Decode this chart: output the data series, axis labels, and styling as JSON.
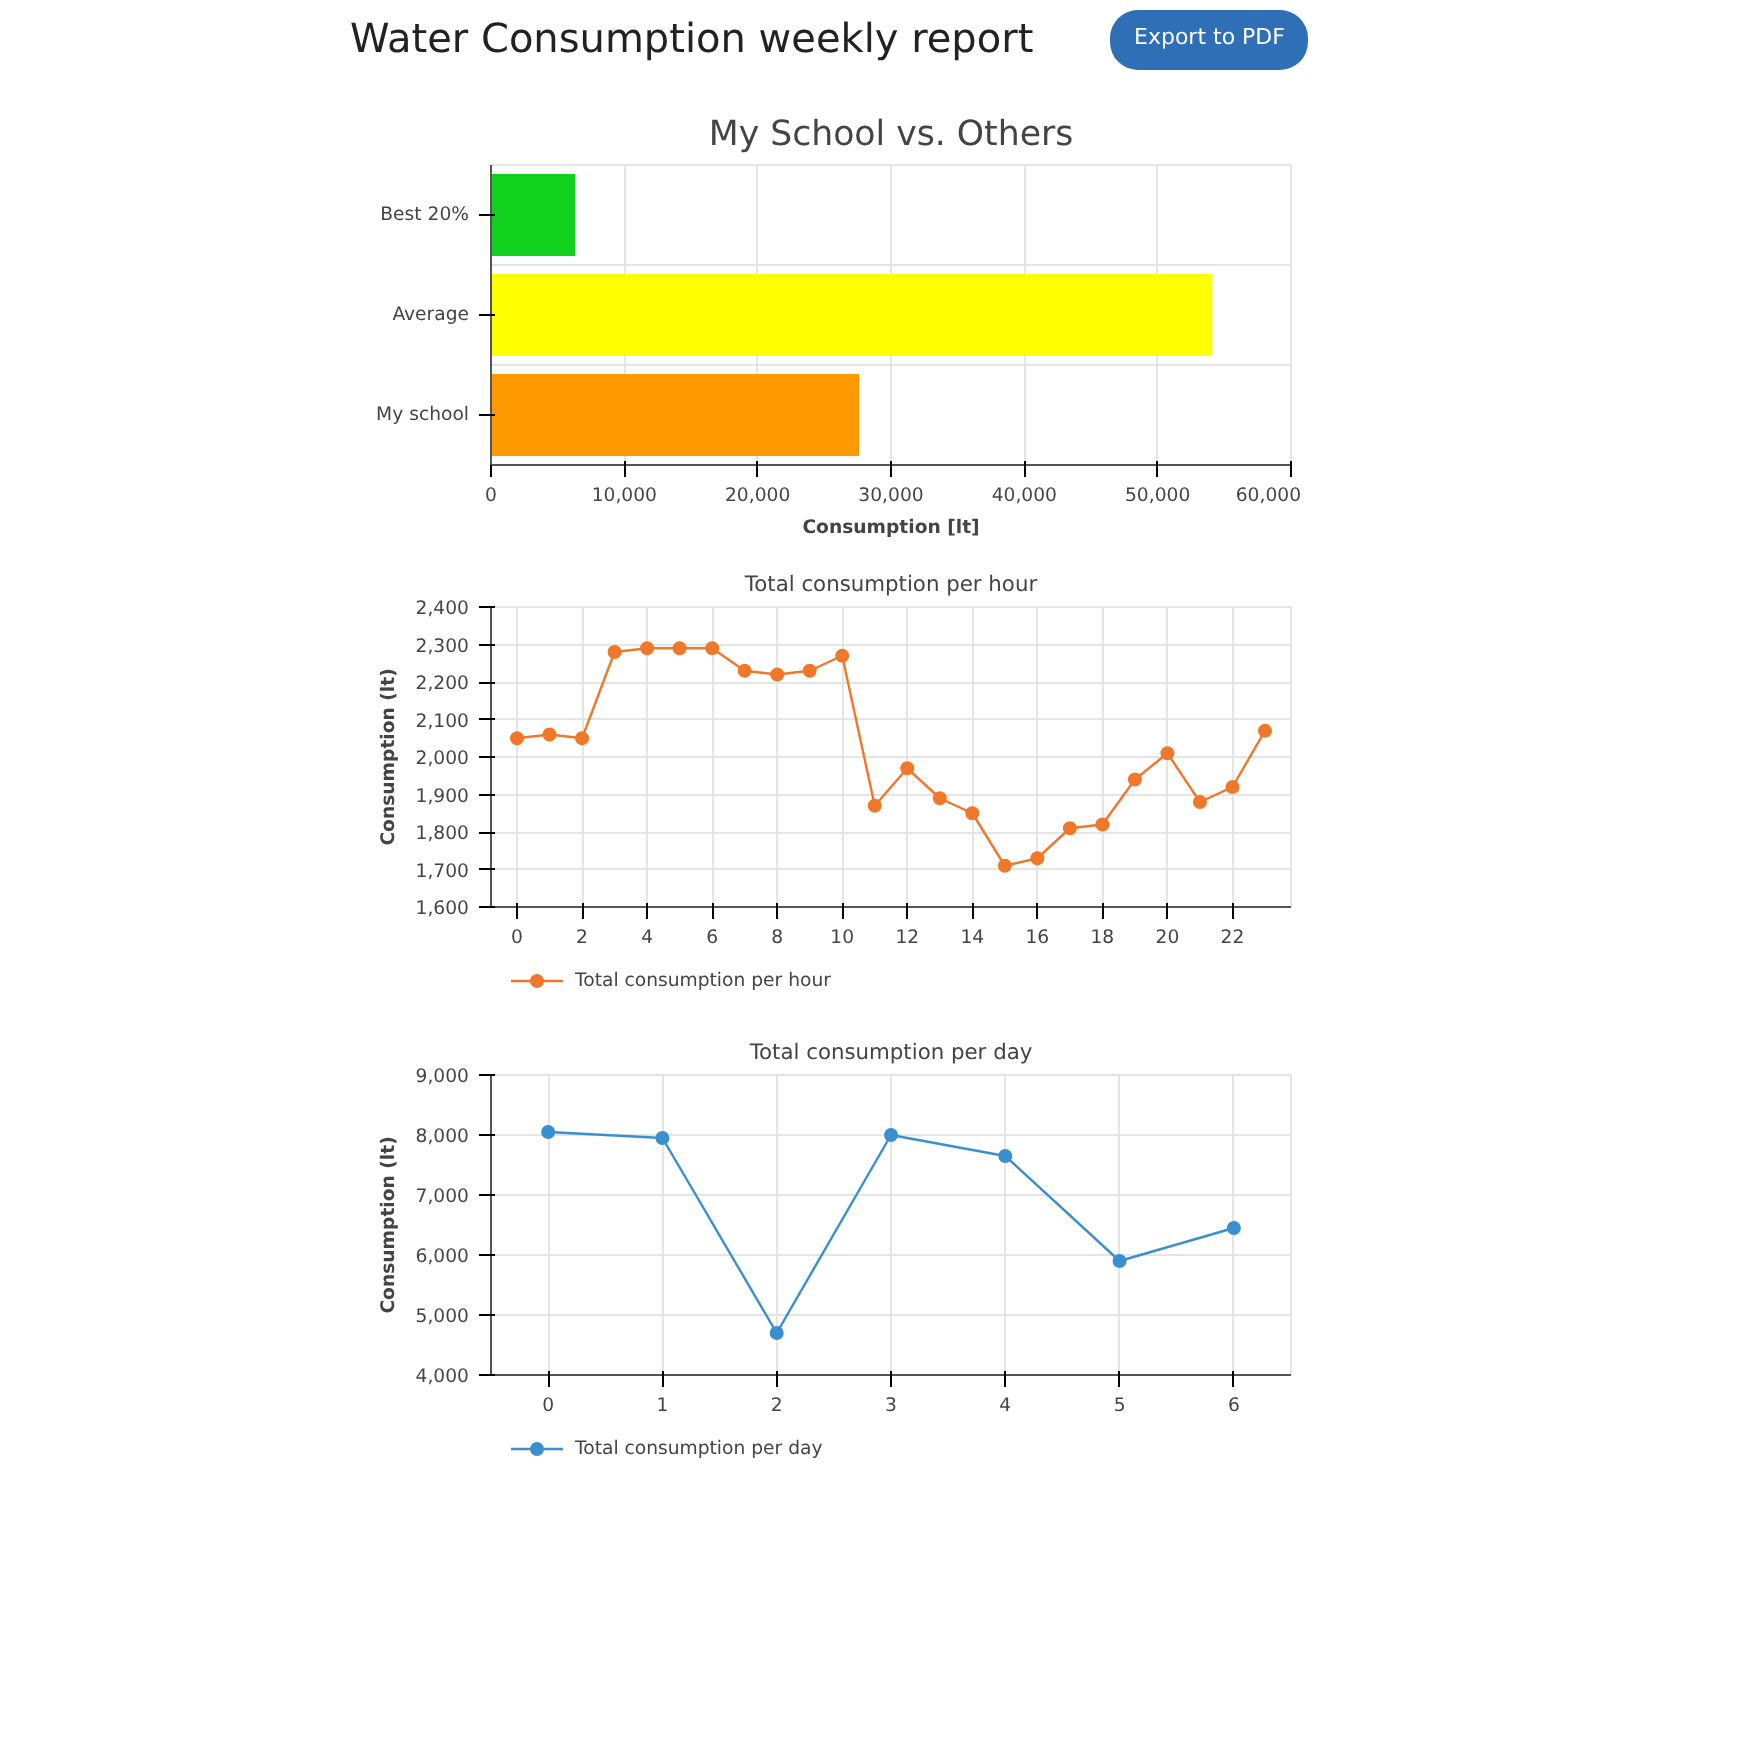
{
  "chart_data": [
    {
      "type": "bar",
      "orientation": "horizontal",
      "title": "My School vs. Others",
      "annotations": [
        "Water Consumption weekly report",
        "Export to PDF"
      ],
      "xlabel": "Consumption [lt]",
      "categories": [
        "Best 20%",
        "Average",
        "My school"
      ],
      "values": [
        6300,
        54100,
        27600
      ],
      "colors": [
        "#11d11f",
        "#ffff00",
        "#ff9900"
      ],
      "xlim": [
        0,
        60000
      ],
      "xticks": [
        0,
        {
          "value": 10000,
          "label": "10,000"
        },
        {
          "value": 20000,
          "label": "20,000"
        },
        {
          "value": 30000,
          "label": "30,000"
        },
        {
          "value": 40000,
          "label": "40,000"
        },
        {
          "value": 50000,
          "label": "50,000"
        },
        {
          "value": 60000,
          "label": "60,000"
        }
      ],
      "grid": true
    },
    {
      "type": "line",
      "title": "Total consumption per hour",
      "ylabel": "Consumption (lt)",
      "x": [
        0,
        1,
        2,
        3,
        4,
        5,
        6,
        7,
        8,
        9,
        10,
        11,
        12,
        13,
        14,
        15,
        16,
        17,
        18,
        19,
        20,
        21,
        22,
        23
      ],
      "xlim": [
        -0.8,
        23.8
      ],
      "xticks": [
        0,
        2,
        4,
        6,
        8,
        10,
        12,
        14,
        16,
        18,
        20,
        22
      ],
      "ylim": [
        1600,
        2400
      ],
      "yticks": [
        {
          "value": 1600,
          "label": "1,600"
        },
        {
          "value": 1700,
          "label": "1,700"
        },
        {
          "value": 1800,
          "label": "1,800"
        },
        {
          "value": 1900,
          "label": "1,900"
        },
        {
          "value": 2000,
          "label": "2,000"
        },
        {
          "value": 2100,
          "label": "2,100"
        },
        {
          "value": 2200,
          "label": "2,200"
        },
        {
          "value": 2300,
          "label": "2,300"
        },
        {
          "value": 2400,
          "label": "2,400"
        }
      ],
      "grid": true,
      "legend": "bottom",
      "marker": "circle",
      "line_style": "solid",
      "series": [
        {
          "name": "Total consumption per hour",
          "color": "#f0782a",
          "values": [
            2050,
            2060,
            2050,
            2280,
            2290,
            2290,
            2290,
            2230,
            2220,
            2230,
            2270,
            1870,
            1970,
            1890,
            1850,
            1710,
            1730,
            1810,
            1820,
            1940,
            2010,
            1880,
            1920,
            2070
          ]
        }
      ]
    },
    {
      "type": "line",
      "title": "Total consumption per day",
      "ylabel": "Consumption (lt)",
      "x": [
        0,
        1,
        2,
        3,
        4,
        5,
        6
      ],
      "xlim": [
        -0.5,
        6.5
      ],
      "xticks": [
        0,
        1,
        2,
        3,
        4,
        5,
        6
      ],
      "ylim": [
        4000,
        9000
      ],
      "yticks": [
        {
          "value": 4000,
          "label": "4,000"
        },
        {
          "value": 5000,
          "label": "5,000"
        },
        {
          "value": 6000,
          "label": "6,000"
        },
        {
          "value": 7000,
          "label": "7,000"
        },
        {
          "value": 8000,
          "label": "8,000"
        },
        {
          "value": 9000,
          "label": "9,000"
        }
      ],
      "grid": true,
      "legend": "bottom",
      "marker": "circle",
      "line_style": "solid",
      "series": [
        {
          "name": "Total consumption per day",
          "color": "#3a8fd0",
          "values": [
            8050,
            7950,
            4700,
            8000,
            7650,
            5900,
            6450
          ]
        }
      ]
    }
  ]
}
